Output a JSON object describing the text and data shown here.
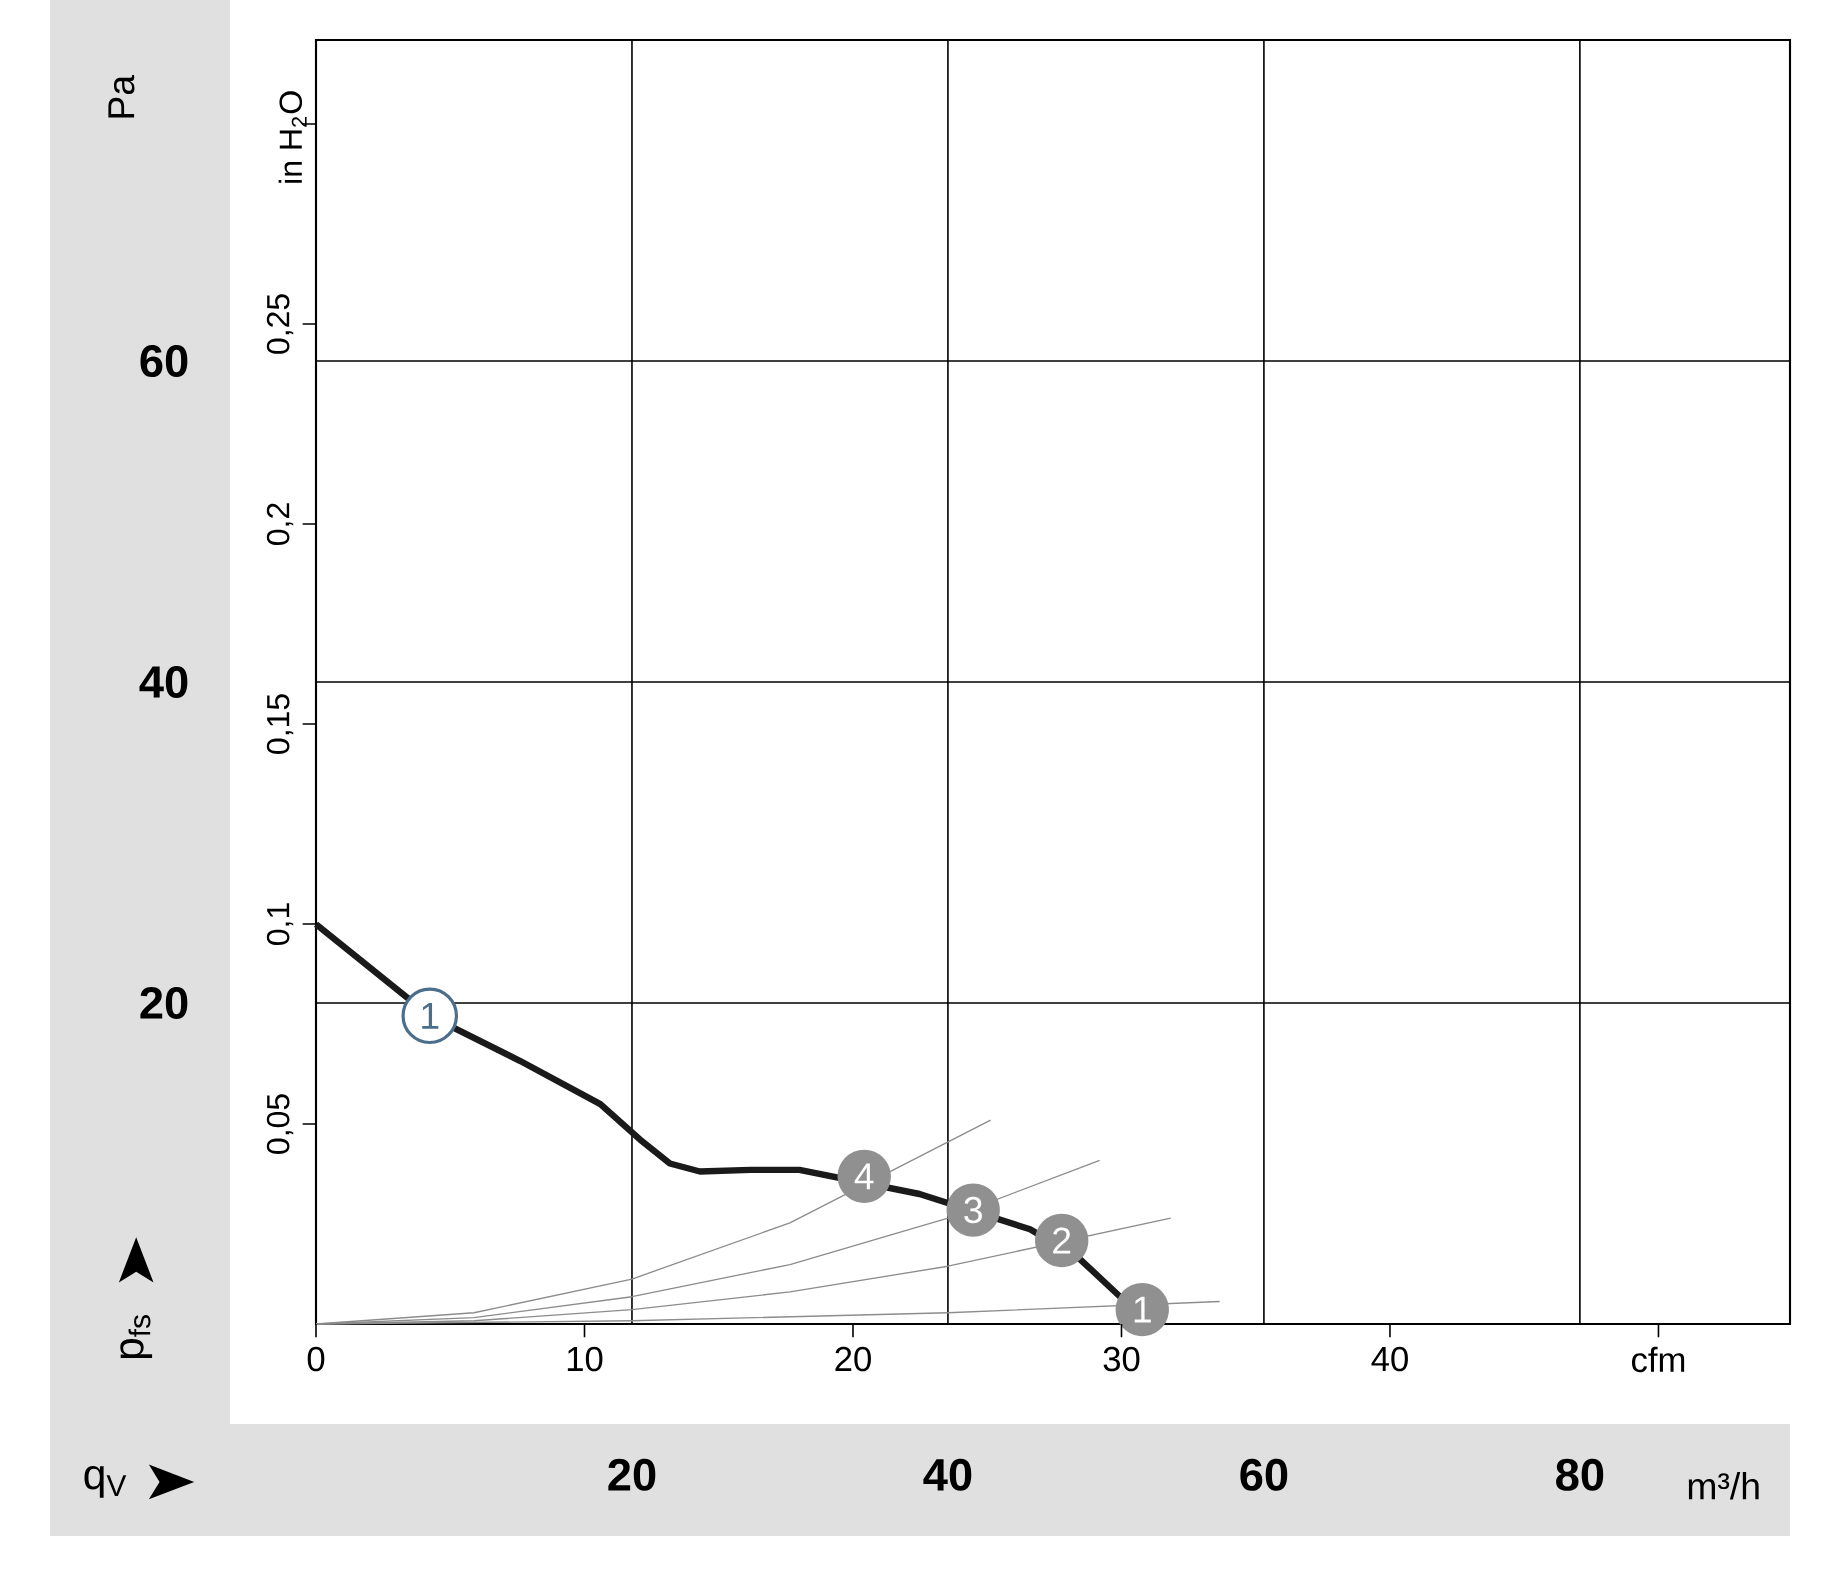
{
  "chart_data": {
    "type": "line",
    "xlabel": "m³/h",
    "ylabel": "Pa",
    "x2label": "cfm",
    "y2label": "in H$_{2}$O",
    "xlim": [
      0,
      93.3
    ],
    "xticks": [
      20,
      40,
      60,
      80
    ],
    "ylim": [
      0,
      80
    ],
    "yticks": [
      20,
      40,
      60
    ],
    "x2lim": [
      0,
      54.9
    ],
    "x2ticks": [
      0,
      10,
      20,
      30,
      40,
      {
        "value": 50,
        "label": null
      }
    ],
    "y2lim": [
      0,
      0.321
    ],
    "y2ticks": [
      {
        "value": 0.05,
        "label": "0,05"
      },
      {
        "value": 0.1,
        "label": "0,1"
      },
      {
        "value": 0.15,
        "label": "0,15"
      },
      {
        "value": 0.2,
        "label": "0,2"
      },
      {
        "value": 0.25,
        "label": "0,25"
      },
      {
        "value": 0.3,
        "label": null
      }
    ],
    "grid": true,
    "series": [
      {
        "color": "#1a1a1a",
        "x": [
          0,
          7.2,
          12.9,
          18.0,
          20.5,
          22.4,
          24.3,
          27.5,
          30.6,
          38.2,
          45.2,
          48.4,
          50.9
        ],
        "values": [
          24.9,
          19.2,
          16.4,
          13.7,
          11.5,
          10.0,
          9.5,
          9.6,
          9.6,
          8.1,
          5.9,
          4.0,
          1.7
        ]
      },
      {
        "color": "#8c8c8c",
        "x": [
          0,
          10,
          20,
          30,
          42.7
        ],
        "values": [
          0,
          0.7,
          2.8,
          6.3,
          12.7
        ]
      },
      {
        "color": "#8c8c8c",
        "x": [
          0,
          10,
          20,
          30,
          40,
          49.6
        ],
        "values": [
          0,
          0.4,
          1.7,
          3.7,
          6.6,
          10.2
        ]
      },
      {
        "color": "#8c8c8c",
        "x": [
          0,
          10,
          20,
          30,
          40,
          54.1
        ],
        "values": [
          0,
          0.2,
          0.9,
          2.0,
          3.6,
          6.6
        ]
      },
      {
        "color": "#8c8c8c",
        "x": [
          0,
          20,
          40,
          57.2
        ],
        "values": [
          0,
          0.2,
          0.7,
          1.4
        ]
      }
    ],
    "annotations": [
      "p$_{fs}$",
      "q$_{V}$",
      {
        "text": "1",
        "x": 7.2,
        "y": 19.2
      },
      {
        "text": "4",
        "x": 34.7,
        "y": 9.2
      },
      {
        "text": "3",
        "x": 41.6,
        "y": 7.1
      },
      {
        "text": "2",
        "x": 47.2,
        "y": 5.2
      },
      {
        "text": "1",
        "x": 52.3,
        "y": 0.9
      }
    ]
  }
}
